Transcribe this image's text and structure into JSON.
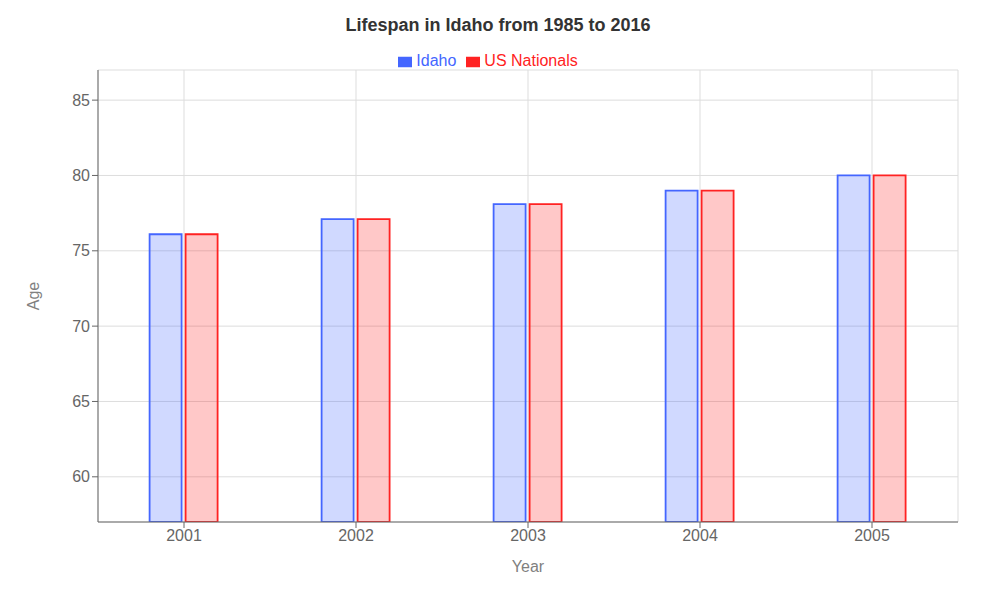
{
  "chart_data": {
    "type": "bar",
    "title": "Lifespan in Idaho from 1985 to 2016",
    "x_label": "Year",
    "y_label": "Age",
    "categories": [
      "2001",
      "2002",
      "2003",
      "2004",
      "2005"
    ],
    "series": [
      {
        "name": "Idaho",
        "color": "#4466ff",
        "values": [
          76.1,
          77.1,
          78.1,
          79.0,
          80.0
        ]
      },
      {
        "name": "US Nationals",
        "color": "#ff2222",
        "values": [
          76.1,
          77.1,
          78.1,
          79.0,
          80.0
        ]
      }
    ],
    "ylim": [
      57,
      87
    ],
    "yticks": [
      60,
      65,
      70,
      75,
      80,
      85
    ],
    "grid": true,
    "legend": "top"
  }
}
